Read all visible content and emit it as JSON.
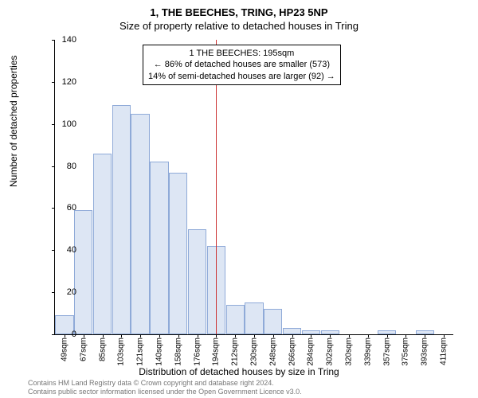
{
  "title_main": "1, THE BEECHES, TRING, HP23 5NP",
  "title_sub": "Size of property relative to detached houses in Tring",
  "ylabel": "Number of detached properties",
  "xlabel": "Distribution of detached houses by size in Tring",
  "annotation": {
    "line1": "1 THE BEECHES: 195sqm",
    "line2": "← 86% of detached houses are smaller (573)",
    "line3": "14% of semi-detached houses are larger (92) →"
  },
  "footer_line1": "Contains HM Land Registry data © Crown copyright and database right 2024.",
  "footer_line2": "Contains public sector information licensed under the Open Government Licence v3.0.",
  "chart": {
    "type": "histogram",
    "ylim": [
      0,
      140
    ],
    "ytick_step": 20,
    "background_color": "#ffffff",
    "bar_fill": "#dde6f4",
    "bar_stroke": "#8faad8",
    "ref_line_color": "#cc3333",
    "ref_line_x_index": 8,
    "categories": [
      "49sqm",
      "67sqm",
      "85sqm",
      "103sqm",
      "121sqm",
      "140sqm",
      "158sqm",
      "176sqm",
      "194sqm",
      "212sqm",
      "230sqm",
      "248sqm",
      "266sqm",
      "284sqm",
      "302sqm",
      "320sqm",
      "339sqm",
      "357sqm",
      "375sqm",
      "393sqm",
      "411sqm"
    ],
    "values": [
      9,
      59,
      86,
      109,
      105,
      82,
      77,
      50,
      42,
      14,
      15,
      12,
      3,
      2,
      2,
      0,
      0,
      2,
      0,
      2
    ],
    "title_fontsize": 13,
    "label_fontsize": 12,
    "tick_fontsize": 11
  }
}
